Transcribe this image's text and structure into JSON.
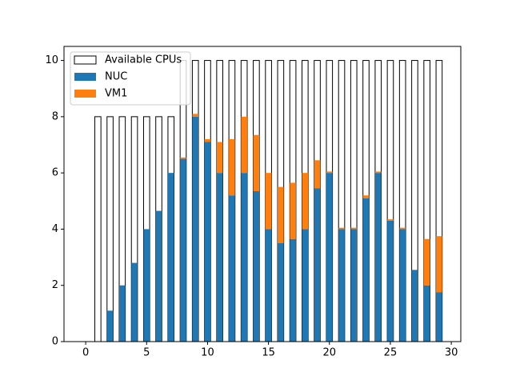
{
  "chart_data": {
    "type": "bar",
    "x": [
      0,
      1,
      2,
      3,
      4,
      5,
      6,
      7,
      8,
      9,
      10,
      11,
      12,
      13,
      14,
      15,
      16,
      17,
      18,
      19,
      20,
      21,
      22,
      23,
      24,
      25,
      26,
      27,
      28,
      29
    ],
    "bar_width": 0.5,
    "series": [
      {
        "name": "Available CPUs",
        "color": "none",
        "edgecolor": "#000000",
        "values": [
          0,
          8,
          8,
          8,
          8,
          8,
          8,
          8,
          10,
          10,
          10,
          10,
          10,
          10,
          10,
          10,
          10,
          10,
          10,
          10,
          10,
          10,
          10,
          10,
          10,
          10,
          10,
          10,
          10,
          10
        ]
      },
      {
        "name": "NUC",
        "color": "#1f77b4",
        "values": [
          0,
          0,
          1.1,
          2.0,
          2.8,
          4.0,
          4.65,
          6.0,
          6.5,
          8.0,
          7.1,
          6.0,
          5.2,
          6.0,
          5.35,
          4.0,
          3.5,
          3.65,
          4.0,
          5.45,
          6.0,
          4.0,
          4.0,
          5.1,
          6.0,
          4.3,
          4.0,
          2.55,
          2.0,
          1.75
        ]
      },
      {
        "name": "VM1",
        "color": "#ff7f0e",
        "bottom": "NUC",
        "values": [
          0,
          0,
          0,
          0,
          0,
          0,
          0,
          0,
          0.05,
          0.1,
          0.1,
          1.1,
          2.0,
          2.0,
          2.0,
          2.0,
          2.0,
          2.0,
          2.0,
          1.0,
          0.05,
          0.05,
          0.05,
          0.1,
          0.05,
          0.05,
          0.05,
          0,
          1.65,
          2.0
        ]
      }
    ],
    "xlim": [
      -1.78,
      30.78
    ],
    "xticks": [
      0,
      5,
      10,
      15,
      20,
      25,
      30
    ],
    "ylim": [
      0,
      10.5
    ],
    "yticks": [
      0,
      2,
      4,
      6,
      8,
      10
    ],
    "legend": "upper left"
  }
}
